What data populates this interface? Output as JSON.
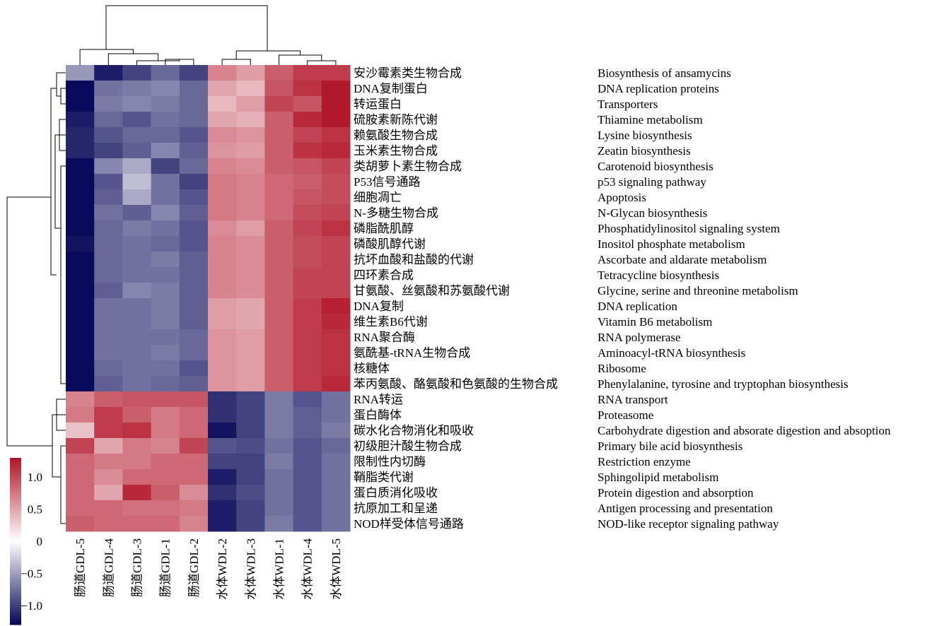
{
  "chart_data": {
    "type": "heatmap",
    "title": "",
    "columns": [
      "肠道GDL-5",
      "肠道GDL-4",
      "肠道GDL-3",
      "肠道GDL-1",
      "肠道GDL-2",
      "水体WDL-2",
      "水体WDL-3",
      "水体WDL-1",
      "水体WDL-4",
      "水体WDL-5"
    ],
    "rows": [
      {
        "cn": "安沙霉素类生物合成",
        "en": "Biosynthesis of ansamycins"
      },
      {
        "cn": "DNA复制蛋白",
        "en": "DNA replication proteins"
      },
      {
        "cn": "转运蛋白",
        "en": "Transporters"
      },
      {
        "cn": "硫胺素新陈代谢",
        "en": "Thiamine metabolism"
      },
      {
        "cn": "赖氨酸生物合成",
        "en": "Lysine biosynthesis"
      },
      {
        "cn": "玉米素生物合成",
        "en": "Zeatin biosynthesis"
      },
      {
        "cn": "类胡萝卜素生物合成",
        "en": "Carotenoid biosynthesis"
      },
      {
        "cn": "P53信号通路",
        "en": "p53 signaling pathway"
      },
      {
        "cn": "细胞凋亡",
        "en": "Apoptosis"
      },
      {
        "cn": "N-多糖生物合成",
        "en": "N-Glycan biosynthesis"
      },
      {
        "cn": "磷脂酰肌醇",
        "en": "Phosphatidylinositol signaling system"
      },
      {
        "cn": "磷酸肌醇代谢",
        "en": "Inositol phosphate metabolism"
      },
      {
        "cn": "抗坏血酸和盐酸的代谢",
        "en": "Ascorbate and aldarate metabolism"
      },
      {
        "cn": "四环素合成",
        "en": "Tetracycline biosynthesis"
      },
      {
        "cn": "甘氨酸、丝氨酸和苏氨酸代谢",
        "en": "Glycine, serine and threonine metabolism"
      },
      {
        "cn": "DNA复制",
        "en": "DNA replication"
      },
      {
        "cn": "维生素B6代谢",
        "en": "Vitamin B6 metabolism"
      },
      {
        "cn": "RNA聚合酶",
        "en": "RNA polymerase"
      },
      {
        "cn": "氨酰基-tRNA生物合成",
        "en": "Aminoacyl-tRNA biosynthesis"
      },
      {
        "cn": "核糖体",
        "en": "Ribosome"
      },
      {
        "cn": "苯丙氨酸、酪氨酸和色氨酸的生物合成",
        "en": "Phenylalanine, tyrosine and tryptophan biosynthesis"
      },
      {
        "cn": "RNA转运",
        "en": "RNA transport"
      },
      {
        "cn": "蛋白酶体",
        "en": "Proteasome"
      },
      {
        "cn": "碳水化合物消化和吸收",
        "en": "Carbohydrate digestion and absorate digestion and absoption"
      },
      {
        "cn": "初级胆汁酸生物合成",
        "en": "Primary bile acid biosynthesis"
      },
      {
        "cn": "限制性内切酶",
        "en": "Restriction enzyme"
      },
      {
        "cn": "鞘脂类代谢",
        "en": "Sphingolipid metabolism"
      },
      {
        "cn": "蛋白质消化吸收",
        "en": "Protein digestion and absorption"
      },
      {
        "cn": "抗原加工和呈递",
        "en": "Antigen processing and presentation"
      },
      {
        "cn": "NOD样受体信号通路",
        "en": "NOD-like receptor signaling pathway"
      }
    ],
    "values": [
      [
        -0.55,
        -1.2,
        -1.0,
        -0.8,
        -1.0,
        0.7,
        0.55,
        0.9,
        1.1,
        1.1
      ],
      [
        -1.3,
        -0.75,
        -0.7,
        -0.65,
        -0.8,
        0.5,
        0.4,
        0.95,
        1.15,
        1.3
      ],
      [
        -1.3,
        -0.7,
        -0.65,
        -0.7,
        -0.8,
        0.4,
        0.55,
        1.05,
        0.95,
        1.35
      ],
      [
        -1.2,
        -0.8,
        -0.9,
        -0.75,
        -0.8,
        0.5,
        0.45,
        0.9,
        1.2,
        1.3
      ],
      [
        -1.15,
        -0.9,
        -0.8,
        -0.8,
        -0.9,
        0.65,
        0.6,
        0.9,
        1.05,
        1.15
      ],
      [
        -1.15,
        -1.0,
        -0.85,
        -0.65,
        -0.85,
        0.6,
        0.55,
        0.9,
        1.15,
        1.2
      ],
      [
        -1.3,
        -0.65,
        -0.45,
        -1.0,
        -0.8,
        0.7,
        0.65,
        0.9,
        0.95,
        1.05
      ],
      [
        -1.3,
        -0.9,
        -0.35,
        -0.75,
        -1.0,
        0.75,
        0.7,
        0.85,
        0.9,
        1.0
      ],
      [
        -1.3,
        -0.85,
        -0.45,
        -0.75,
        -0.9,
        0.75,
        0.7,
        0.85,
        0.95,
        1.0
      ],
      [
        -1.3,
        -0.75,
        -0.85,
        -0.65,
        -0.85,
        0.75,
        0.7,
        0.85,
        1.0,
        1.05
      ],
      [
        -1.3,
        -0.8,
        -0.7,
        -0.75,
        -0.9,
        0.65,
        0.55,
        0.9,
        1.05,
        1.15
      ],
      [
        -1.25,
        -0.8,
        -0.75,
        -0.8,
        -0.9,
        0.7,
        0.65,
        0.9,
        1.0,
        1.05
      ],
      [
        -1.3,
        -0.8,
        -0.75,
        -0.7,
        -0.85,
        0.7,
        0.65,
        0.9,
        1.0,
        1.05
      ],
      [
        -1.3,
        -0.8,
        -0.75,
        -0.75,
        -0.85,
        0.7,
        0.65,
        0.9,
        1.05,
        1.05
      ],
      [
        -1.3,
        -0.85,
        -0.65,
        -0.7,
        -0.85,
        0.7,
        0.65,
        0.9,
        1.05,
        1.05
      ],
      [
        -1.3,
        -0.75,
        -0.75,
        -0.7,
        -0.85,
        0.55,
        0.5,
        0.9,
        1.1,
        1.25
      ],
      [
        -1.3,
        -0.75,
        -0.75,
        -0.7,
        -0.85,
        0.55,
        0.5,
        0.9,
        1.1,
        1.2
      ],
      [
        -1.3,
        -0.75,
        -0.75,
        -0.75,
        -0.8,
        0.6,
        0.55,
        0.9,
        1.1,
        1.15
      ],
      [
        -1.3,
        -0.75,
        -0.75,
        -0.7,
        -0.8,
        0.6,
        0.55,
        0.9,
        1.1,
        1.15
      ],
      [
        -1.3,
        -0.8,
        -0.75,
        -0.75,
        -0.9,
        0.6,
        0.55,
        0.9,
        1.1,
        1.15
      ],
      [
        -1.3,
        -0.85,
        -0.75,
        -0.8,
        -0.85,
        0.6,
        0.55,
        0.9,
        1.1,
        1.2
      ],
      [
        0.7,
        0.9,
        0.95,
        0.95,
        0.95,
        -1.1,
        -1.0,
        -0.7,
        -0.9,
        -0.75
      ],
      [
        0.75,
        1.1,
        0.9,
        0.75,
        0.85,
        -1.1,
        -1.0,
        -0.7,
        -0.85,
        -0.75
      ],
      [
        0.35,
        1.1,
        1.15,
        0.75,
        0.85,
        -1.25,
        -1.0,
        -0.7,
        -0.85,
        -0.7
      ],
      [
        1.05,
        0.5,
        0.75,
        0.7,
        1.05,
        -0.9,
        -0.95,
        -0.75,
        -0.9,
        -0.8
      ],
      [
        0.85,
        0.75,
        0.75,
        0.85,
        0.85,
        -1.0,
        -1.0,
        -0.7,
        -0.9,
        -0.75
      ],
      [
        0.85,
        0.65,
        0.85,
        0.85,
        0.85,
        -1.2,
        -1.0,
        -0.75,
        -0.9,
        -0.75
      ],
      [
        0.85,
        0.5,
        1.2,
        0.9,
        0.65,
        -1.1,
        -0.95,
        -0.75,
        -0.9,
        -0.75
      ],
      [
        0.85,
        0.85,
        0.8,
        0.8,
        0.75,
        -1.2,
        -1.0,
        -0.75,
        -0.9,
        -0.75
      ],
      [
        0.9,
        0.85,
        0.85,
        0.85,
        0.7,
        -1.2,
        -1.0,
        -0.7,
        -0.9,
        -0.75
      ]
    ],
    "color_range": [
      -1.3,
      1.3
    ],
    "colors": {
      "low": "#0a0a5a",
      "mid": "#ffffff",
      "high": "#b2182b"
    },
    "legend": {
      "ticks": [
        "1.0",
        "0.5",
        "0",
        "−0.5",
        "−1.0"
      ],
      "tick_values": [
        1.0,
        0.5,
        0,
        -0.5,
        -1.0
      ],
      "placement": "bottom-left"
    },
    "dendrograms": {
      "column_tree": true,
      "row_tree": true
    }
  }
}
